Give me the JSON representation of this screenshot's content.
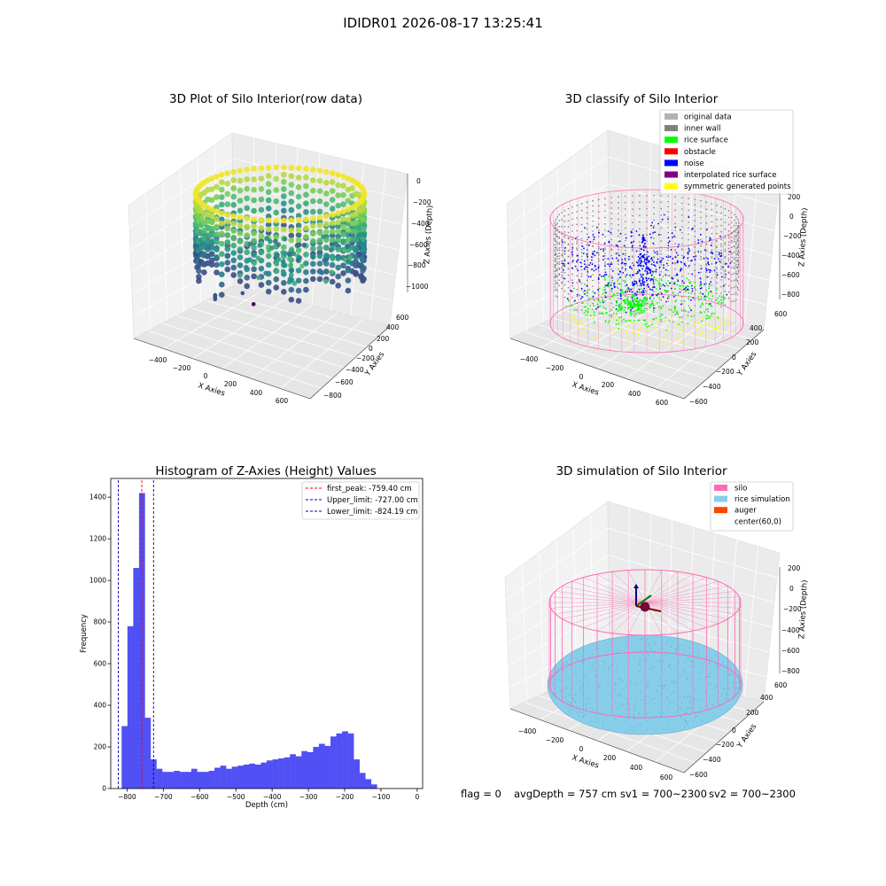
{
  "figure": {
    "suptitle": "IDIDR01 2026-08-17 13:25:41",
    "footer": {
      "flag": "flag = 0",
      "avg": "avgDepth = 757 cm",
      "sv1": "sv1 = 700~2300",
      "sv2": "sv2 = 700~2300"
    }
  },
  "colors": {
    "viridis": [
      "#440154",
      "#3b528b",
      "#21918c",
      "#5ec962",
      "#fde725"
    ],
    "original": "#b3b3b3",
    "inner_wall": "#808080",
    "rice_surface": "#00ff00",
    "obstacle": "#ff0000",
    "noise": "#0000ff",
    "interp": "#800080",
    "symmetric": "#ffff00",
    "silo": "#ff69b4",
    "rice_sim": "#87ceeb",
    "auger": "#ff4500",
    "hist_bar": "#5050f5"
  },
  "chart_data": [
    {
      "type": "scatter3d",
      "title": "3D Plot of Silo Interior(row data)",
      "xlabel": "X Axies",
      "ylabel": "Y Axies",
      "zlabel": "Z Axies (Depth)",
      "x_ticks": [
        "−400",
        "−200",
        "0",
        "200",
        "400",
        "600"
      ],
      "y_ticks": [
        "−800",
        "−600",
        "−400",
        "−200",
        "0",
        "200",
        "400",
        "600"
      ],
      "z_ticks": [
        "0",
        "−200",
        "−400",
        "−600",
        "−800",
        "−1000"
      ],
      "xlim": [
        -500,
        650
      ],
      "ylim": [
        -900,
        650
      ],
      "zlim": [
        -1100,
        0
      ],
      "colormap": "viridis",
      "silo_radius_approx": 580,
      "outlier_points": [
        {
          "x": 60,
          "y": 40,
          "z": -980
        },
        {
          "x": 60,
          "y": 40,
          "z": -1000
        },
        {
          "x": 60,
          "y": 40,
          "z": -1020
        },
        {
          "x": 320,
          "y": -50,
          "z": -930
        },
        {
          "x": 430,
          "y": -100,
          "z": -1020
        }
      ]
    },
    {
      "type": "scatter3d",
      "title": "3D classify of Silo Interior",
      "xlabel": "X Axies",
      "ylabel": "Y Axies",
      "zlabel": "Z Axies (Depth)",
      "x_ticks": [
        "−400",
        "−200",
        "0",
        "200",
        "400",
        "600"
      ],
      "y_ticks": [
        "−600",
        "−400",
        "−200",
        "0",
        "200",
        "400",
        "600"
      ],
      "z_ticks": [
        "200",
        "0",
        "−200",
        "−400",
        "−600",
        "−800"
      ],
      "xlim": [
        -500,
        650
      ],
      "ylim": [
        -650,
        650
      ],
      "zlim": [
        -900,
        250
      ],
      "legend_position": "upper right",
      "legend": [
        {
          "label": "original data",
          "color": "#b3b3b3"
        },
        {
          "label": "inner wall",
          "color": "#808080"
        },
        {
          "label": "rice surface",
          "color": "#00ff00"
        },
        {
          "label": "obstacle",
          "color": "#ff0000"
        },
        {
          "label": "noise",
          "color": "#0000ff"
        },
        {
          "label": "interpolated rice surface",
          "color": "#800080"
        },
        {
          "label": "symmetric generated points",
          "color": "#ffff00"
        }
      ]
    },
    {
      "type": "bar",
      "title": "Histogram of Z-Axies (Height) Values",
      "xlabel": "Depth (cm)",
      "ylabel": "Frequency",
      "xlim": [
        -845,
        15
      ],
      "ylim": [
        0,
        1490
      ],
      "x_ticks": [
        -800,
        -700,
        -600,
        -500,
        -400,
        -300,
        -200,
        -100,
        0
      ],
      "x_tick_labels": [
        "−800",
        "−700",
        "−600",
        "−500",
        "−400",
        "−300",
        "−200",
        "−100",
        "0"
      ],
      "y_ticks": [
        0,
        200,
        400,
        600,
        800,
        1000,
        1200,
        1400
      ],
      "bin_start": -815,
      "bin_width": 16,
      "values": [
        300,
        780,
        1060,
        1420,
        340,
        140,
        95,
        80,
        80,
        85,
        80,
        80,
        95,
        80,
        80,
        85,
        100,
        110,
        95,
        105,
        110,
        115,
        120,
        115,
        125,
        135,
        140,
        145,
        150,
        165,
        155,
        180,
        175,
        200,
        215,
        205,
        250,
        265,
        275,
        265,
        140,
        75,
        45,
        20
      ],
      "lines": [
        {
          "label": "first_peak: -759.40 cm",
          "x": -759.4,
          "color": "#ff0000"
        },
        {
          "label": "Upper_limit: -727.00 cm",
          "x": -727.0,
          "color": "#0000aa"
        },
        {
          "label": "Lower_limit: -824.19 cm",
          "x": -824.19,
          "color": "#0000aa"
        }
      ],
      "legend_position": "upper right"
    },
    {
      "type": "surface3d",
      "title": "3D simulation of Silo Interior",
      "xlabel": "X Axies",
      "ylabel": "Y Axies",
      "zlabel": "Z Axies (Depth)",
      "x_ticks": [
        "−400",
        "−200",
        "0",
        "200",
        "400",
        "600"
      ],
      "y_ticks": [
        "−600",
        "−400",
        "−200",
        "0",
        "200",
        "400",
        "600"
      ],
      "z_ticks": [
        "200",
        "0",
        "−200",
        "−400",
        "−600",
        "−800"
      ],
      "legend_position": "upper right",
      "legend": [
        {
          "label": "silo",
          "color": "#ff69b4"
        },
        {
          "label": "rice simulation",
          "color": "#87ceeb"
        },
        {
          "label": "auger",
          "color": "#ff4500"
        },
        {
          "label": "center(60,0)",
          "color": ""
        }
      ]
    }
  ]
}
